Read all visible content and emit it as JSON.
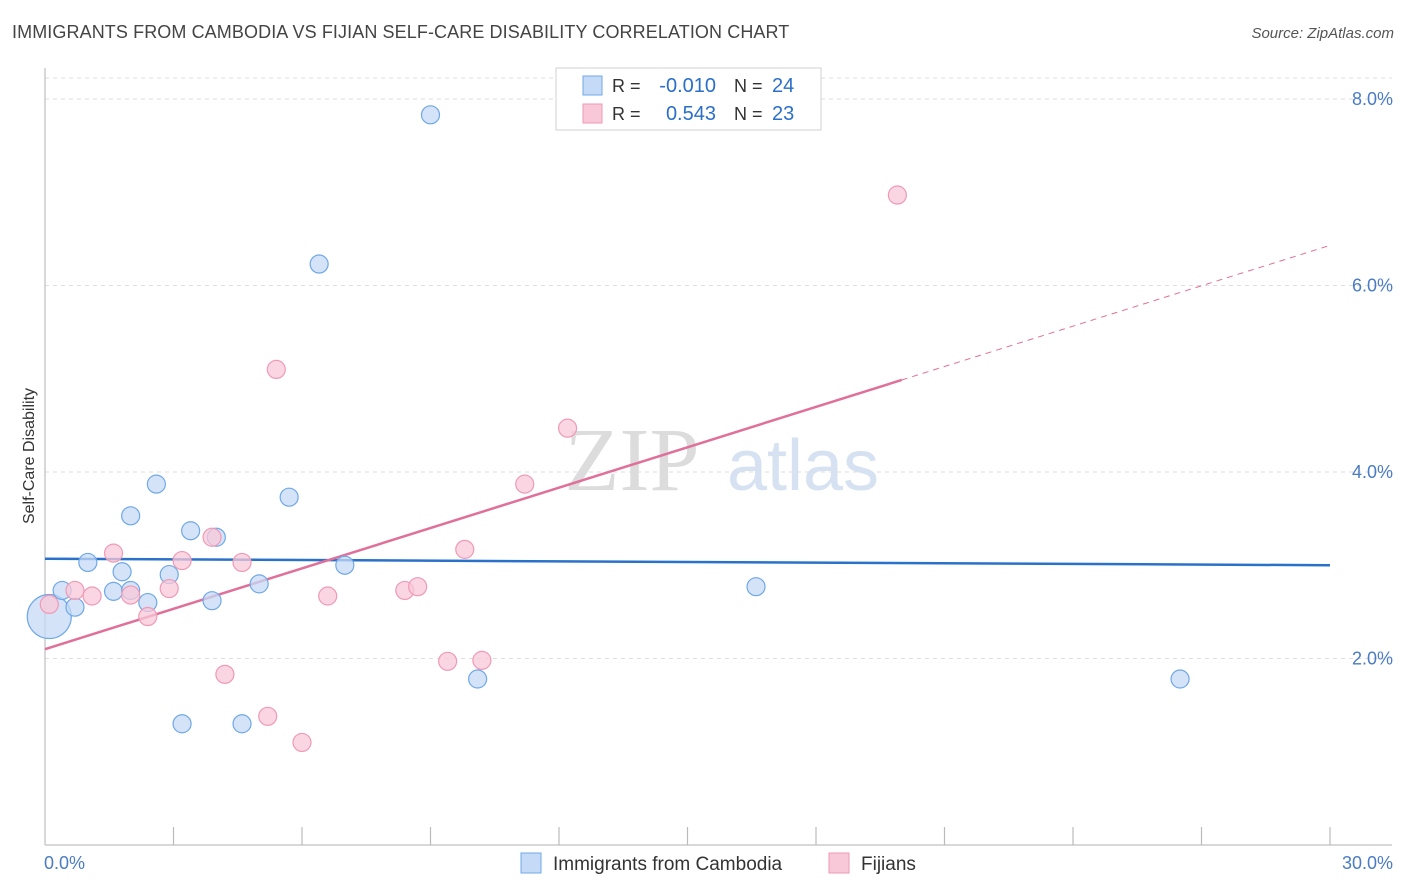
{
  "chart_data": {
    "type": "scatter",
    "title": "IMMIGRANTS FROM CAMBODIA VS FIJIAN SELF-CARE DISABILITY CORRELATION CHART",
    "source": "Source: ZipAtlas.com",
    "watermark": {
      "zip": "ZIP",
      "atlas": "atlas"
    },
    "xlabel": "",
    "ylabel": "Self-Care Disability",
    "xlim": [
      0,
      30
    ],
    "ylim": [
      0,
      8.3
    ],
    "x_tick_labels": [
      {
        "value": 0,
        "label": "0.0%"
      },
      {
        "value": 30,
        "label": "30.0%"
      }
    ],
    "y_tick_labels": [
      {
        "value": 2,
        "label": "2.0%"
      },
      {
        "value": 4,
        "label": "4.0%"
      },
      {
        "value": 6,
        "label": "6.0%"
      },
      {
        "value": 8,
        "label": "8.0%"
      }
    ],
    "x_minor_ticks": [
      3,
      6,
      9,
      12,
      15,
      18,
      21,
      24,
      27,
      30
    ],
    "legend_top": [
      {
        "r_label": "R =",
        "r_value": "-0.010",
        "n_label": "N =",
        "n_value": "24",
        "series": "cambodia"
      },
      {
        "r_label": "R =",
        "r_value": "0.543",
        "n_label": "N =",
        "n_value": "23",
        "series": "fijians"
      }
    ],
    "series": [
      {
        "name": "Immigrants from Cambodia",
        "key": "cambodia",
        "color": "#6fa8e8",
        "fill": "#c5daf6",
        "line_color": "#2a72c9",
        "trend": {
          "x0": 0,
          "y0": 3.07,
          "x1": 30,
          "y1": 3.0,
          "dash_from": null
        },
        "points": [
          [
            0.1,
            2.45,
            22
          ],
          [
            0.4,
            2.73,
            9
          ],
          [
            0.7,
            2.55,
            9
          ],
          [
            1.0,
            3.03,
            9
          ],
          [
            1.6,
            2.72,
            9
          ],
          [
            1.8,
            2.93,
            9
          ],
          [
            2.0,
            2.73,
            9
          ],
          [
            2.0,
            3.53,
            9
          ],
          [
            2.4,
            2.6,
            9
          ],
          [
            2.6,
            3.87,
            9
          ],
          [
            2.9,
            2.9,
            9
          ],
          [
            3.2,
            1.3,
            9
          ],
          [
            3.4,
            3.37,
            9
          ],
          [
            3.9,
            2.62,
            9
          ],
          [
            4.0,
            3.3,
            9
          ],
          [
            4.6,
            1.3,
            9
          ],
          [
            5.0,
            2.8,
            9
          ],
          [
            5.7,
            3.73,
            9
          ],
          [
            6.4,
            6.23,
            9
          ],
          [
            7.0,
            3.0,
            9
          ],
          [
            9.0,
            7.83,
            9
          ],
          [
            10.1,
            1.78,
            9
          ],
          [
            16.6,
            2.77,
            9
          ],
          [
            26.5,
            1.78,
            9
          ]
        ]
      },
      {
        "name": "Fijians",
        "key": "fijians",
        "color": "#ef9ab5",
        "fill": "#f8c8d8",
        "line_color": "#e0709a",
        "trend": {
          "x0": 0,
          "y0": 2.1,
          "x1": 30,
          "y1": 6.43,
          "dash_from": 20
        },
        "points": [
          [
            0.1,
            2.58,
            9
          ],
          [
            0.7,
            2.73,
            9
          ],
          [
            1.1,
            2.67,
            9
          ],
          [
            1.6,
            3.13,
            9
          ],
          [
            2.0,
            2.68,
            9
          ],
          [
            2.4,
            2.45,
            9
          ],
          [
            2.9,
            2.75,
            9
          ],
          [
            3.2,
            3.05,
            9
          ],
          [
            3.9,
            3.3,
            9
          ],
          [
            4.2,
            1.83,
            9
          ],
          [
            4.6,
            3.03,
            9
          ],
          [
            5.2,
            1.38,
            9
          ],
          [
            5.4,
            5.1,
            9
          ],
          [
            6.0,
            1.1,
            9
          ],
          [
            6.6,
            2.67,
            9
          ],
          [
            8.4,
            2.73,
            9
          ],
          [
            8.7,
            2.77,
            9
          ],
          [
            9.4,
            1.97,
            9
          ],
          [
            9.8,
            3.17,
            9
          ],
          [
            10.2,
            1.98,
            9
          ],
          [
            11.2,
            3.87,
            9
          ],
          [
            12.2,
            4.47,
            9
          ],
          [
            19.9,
            6.97,
            9
          ]
        ]
      }
    ],
    "legend_bottom": [
      {
        "label": "Immigrants from Cambodia",
        "series": "cambodia"
      },
      {
        "label": "Fijians",
        "series": "fijians"
      }
    ]
  }
}
